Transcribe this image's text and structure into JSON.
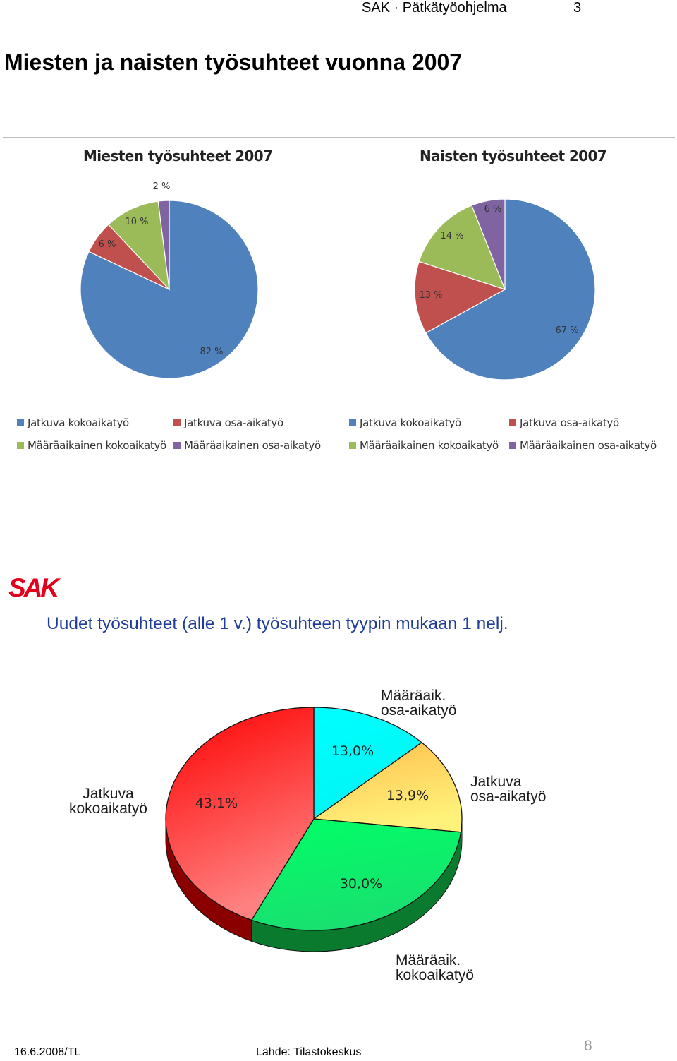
{
  "header": {
    "document": "SAK · Pätkätyöohjelma",
    "page_number": "3"
  },
  "page_title": "Miesten ja naisten työsuhteet vuonna 2007",
  "colors": {
    "jatkuva_koko": "#4f81bd",
    "jatkuva_osa": "#c0504d",
    "maara_koko": "#9bbb59",
    "maara_osa": "#8064a2"
  },
  "chart_data": [
    {
      "type": "pie",
      "title": "Miesten työsuhteet 2007",
      "categories": [
        "Jatkuva kokoaikatyö",
        "Jatkuva osa-aikatyö",
        "Määräaikainen kokoaikatyö",
        "Määräaikainen osa-aikatyö"
      ],
      "values": [
        82,
        6,
        10,
        2
      ],
      "labels": [
        "82 %",
        "6 %",
        "10 %",
        "2 %"
      ],
      "legend": "bottom"
    },
    {
      "type": "pie",
      "title": "Naisten työsuhteet 2007",
      "categories": [
        "Jatkuva kokoaikatyö",
        "Jatkuva osa-aikatyö",
        "Määräaikainen kokoaikatyö",
        "Määräaikainen osa-aikatyö"
      ],
      "values": [
        67,
        13,
        14,
        6
      ],
      "labels": [
        "67 %",
        "13 %",
        "14 %",
        "6 %"
      ],
      "legend": "bottom"
    },
    {
      "type": "pie",
      "title": "Uudet työsuhteet (alle 1 v.) työsuhteen tyypin mukaan 1 nelj.",
      "categories": [
        "Määräaik.\nosa-aikatyö",
        "Jatkuva\nosa-aikatyö",
        "Määräaik.\nkokoaikatyö",
        "Jatkuva\nkokoaikatyö"
      ],
      "values": [
        13.0,
        13.9,
        30.0,
        43.1
      ],
      "labels": [
        "13,0%",
        "13,9%",
        "30,0%",
        "43,1%"
      ],
      "colors": [
        "#00ffff",
        "#ffe45c",
        "#00ff66",
        "#ff1a1a"
      ]
    }
  ],
  "slide": {
    "logo": "SAK"
  },
  "footer": {
    "date": "16.6.2008/TL",
    "source": "Lähde: Tilastokeskus",
    "slide_number": "8"
  }
}
